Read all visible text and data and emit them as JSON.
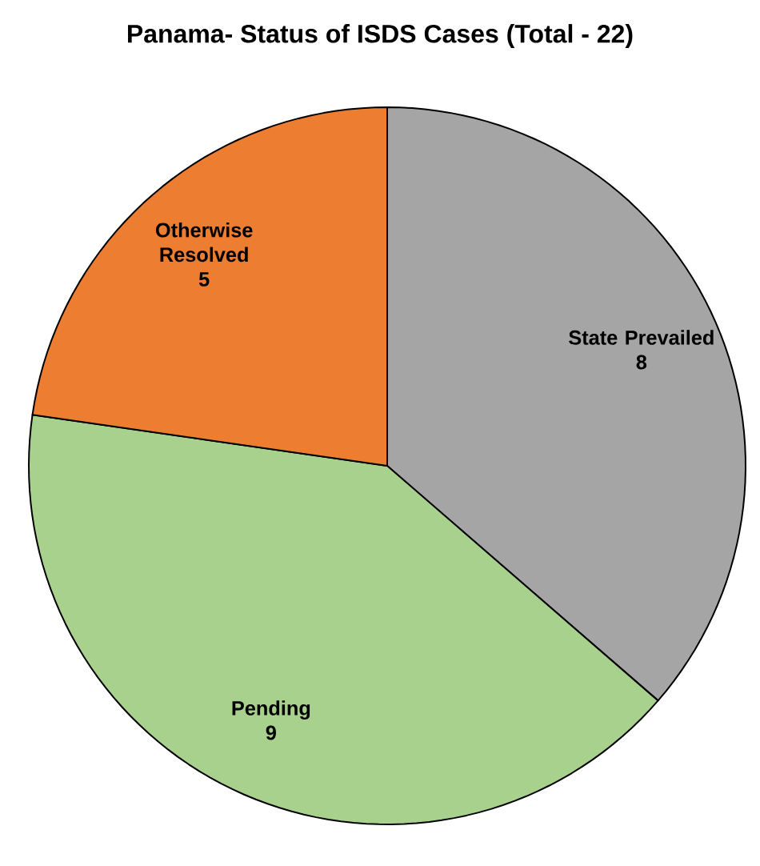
{
  "chart_data": {
    "type": "pie",
    "title": "Panama- Status of ISDS Cases (Total - 22)",
    "categories": [
      "State Prevailed",
      "Pending",
      "Otherwise Resolved"
    ],
    "values": [
      8,
      9,
      5
    ],
    "colors": [
      "#a5a5a5",
      "#a9d18e",
      "#ed7d31"
    ],
    "data_labels": true
  }
}
